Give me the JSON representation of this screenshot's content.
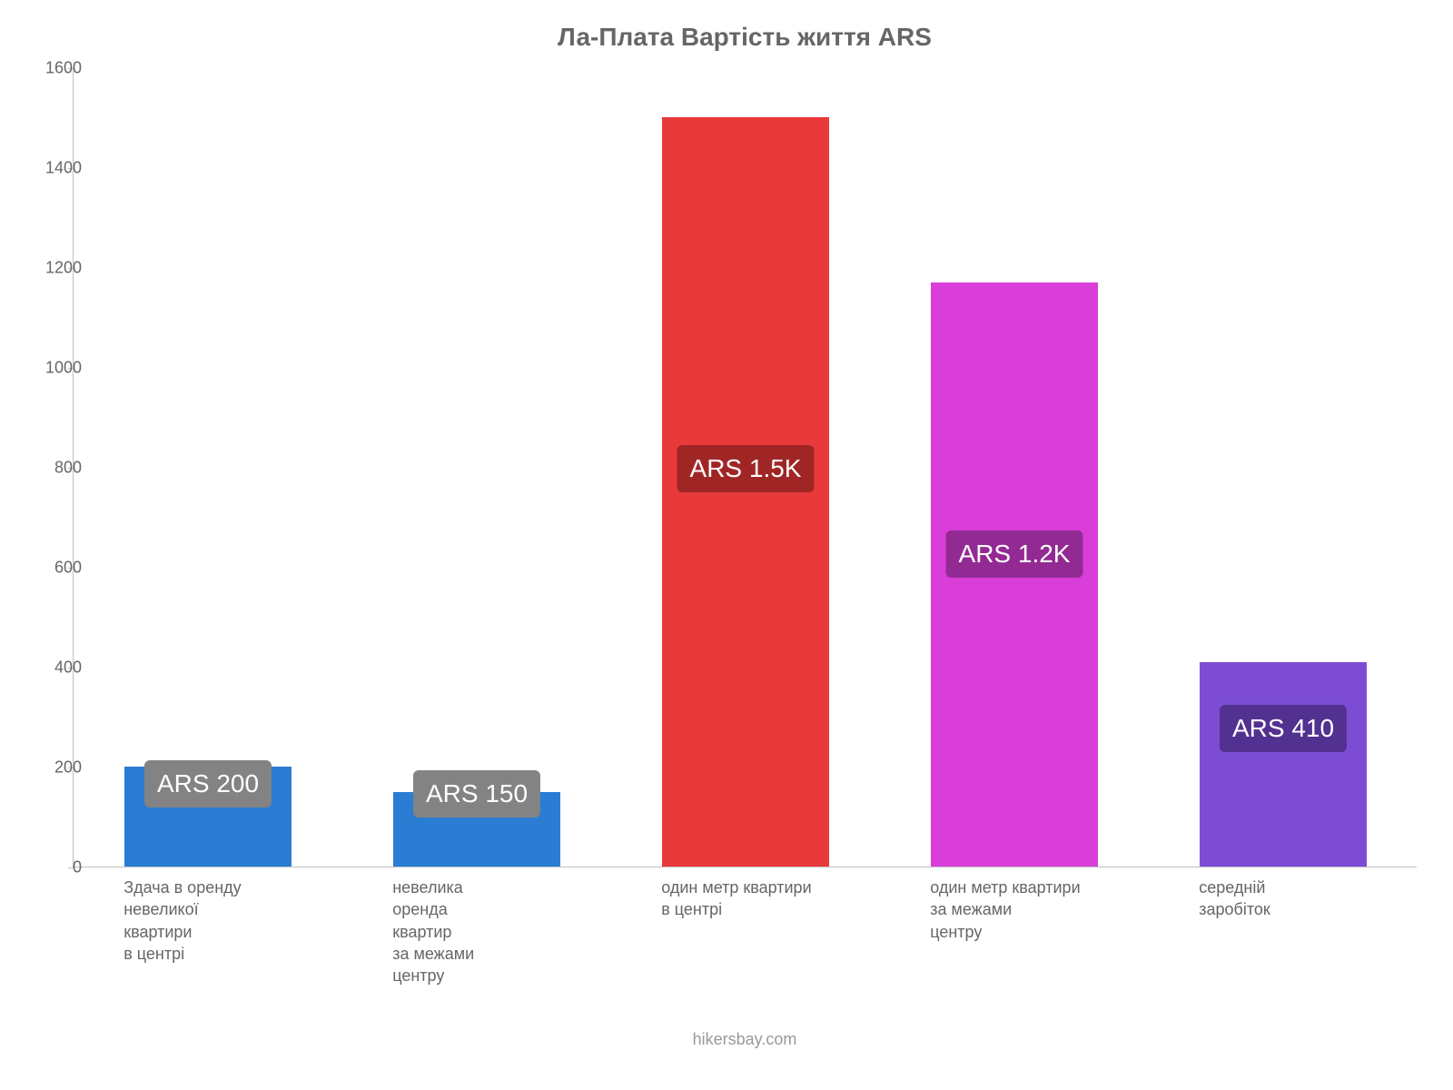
{
  "chart": {
    "type": "bar",
    "title": "Ла-Плата Вартість життя ARS",
    "title_fontsize": 28,
    "title_color": "#666666",
    "background_color": "#ffffff",
    "axis_color": "#c0c0c0",
    "label_color": "#666666",
    "label_fontsize": 18,
    "ylim": [
      0,
      1600
    ],
    "ytick_step": 200,
    "yticks": [
      {
        "v": 0,
        "label": "0"
      },
      {
        "v": 200,
        "label": "200"
      },
      {
        "v": 400,
        "label": "400"
      },
      {
        "v": 600,
        "label": "600"
      },
      {
        "v": 800,
        "label": "800"
      },
      {
        "v": 1000,
        "label": "1000"
      },
      {
        "v": 1200,
        "label": "1200"
      },
      {
        "v": 1400,
        "label": "1400"
      },
      {
        "v": 1600,
        "label": "1600"
      }
    ],
    "bar_width_ratio": 0.62,
    "bars": [
      {
        "category": "Здача в оренду\nневеликої\nквартири\nв центрі",
        "value": 200,
        "value_label": "ARS 200",
        "color": "#2b7cd3",
        "badge_color": "#838383",
        "badge_vpos": 170
      },
      {
        "category": "невелика\nоренда\nквартир\nза межами\nцентру",
        "value": 150,
        "value_label": "ARS 150",
        "color": "#2b7cd3",
        "badge_color": "#838383",
        "badge_vpos": 150
      },
      {
        "category": "один метр квартири\nв центрі",
        "value": 1500,
        "value_label": "ARS 1.5K",
        "color": "#e83a3a",
        "badge_color": "#a02626",
        "badge_vpos": 800
      },
      {
        "category": "один метр квартири\nза межами\nцентру",
        "value": 1170,
        "value_label": "ARS 1.2K",
        "color": "#d93ed9",
        "badge_color": "#932a94",
        "badge_vpos": 630
      },
      {
        "category": "середній\nзаробіток",
        "value": 410,
        "value_label": "ARS 410",
        "color": "#7c4dd4",
        "badge_color": "#533190",
        "badge_vpos": 280
      }
    ],
    "attribution": "hikersbay.com",
    "attribution_color": "#999999"
  }
}
